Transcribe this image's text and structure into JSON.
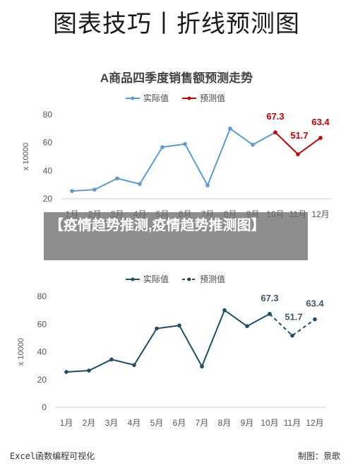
{
  "page": {
    "title": "图表技巧丨折线预测图"
  },
  "overlay": {
    "text": "【疫情趋势推测,疫情趋势推测图】"
  },
  "footer": {
    "left": "Excel函数编程可视化",
    "right": "制图：景歌"
  },
  "chart_data": [
    {
      "type": "line",
      "title": "A商品四季度销售额预测走势",
      "ylabel": "x 10000",
      "ylim": [
        20,
        80
      ],
      "yticks": [
        20,
        40,
        60,
        80
      ],
      "categories": [
        "1月",
        "2月",
        "3月",
        "4月",
        "5月",
        "6月",
        "7月",
        "8月",
        "9月",
        "10月",
        "11月",
        "12月"
      ],
      "series": [
        {
          "name": "实际值",
          "values": [
            25.5,
            26.5,
            34.5,
            30.5,
            56.8,
            59.0,
            29.5,
            70.0,
            58.5,
            67.3,
            null,
            null
          ],
          "color": "#5b9bd5",
          "dashed": false
        },
        {
          "name": "预测值",
          "values": [
            null,
            null,
            null,
            null,
            null,
            null,
            null,
            null,
            null,
            67.3,
            51.7,
            63.4
          ],
          "color": "#c00000",
          "dashed": false
        }
      ],
      "data_labels": [
        {
          "index": 9,
          "text": "67.3"
        },
        {
          "index": 10,
          "text": "51.7"
        },
        {
          "index": 11,
          "text": "63.4"
        }
      ],
      "label_color": "#c00000",
      "legend": "top-center",
      "grid": false
    },
    {
      "type": "line",
      "title": "",
      "ylabel": "x 10000",
      "ylim": [
        0,
        80
      ],
      "yticks": [
        0,
        20,
        40,
        60,
        80
      ],
      "categories": [
        "1月",
        "2月",
        "3月",
        "4月",
        "5月",
        "6月",
        "7月",
        "8月",
        "9月",
        "10月",
        "11月",
        "12月"
      ],
      "series": [
        {
          "name": "实际值",
          "values": [
            25.5,
            26.5,
            34.5,
            30.5,
            56.8,
            59.0,
            29.5,
            70.0,
            58.5,
            67.3,
            null,
            null
          ],
          "color": "#1f4e63",
          "dashed": false
        },
        {
          "name": "预测值",
          "values": [
            null,
            null,
            null,
            null,
            null,
            null,
            null,
            null,
            null,
            67.3,
            51.7,
            63.4
          ],
          "color": "#1f4e63",
          "dashed": true
        }
      ],
      "data_labels": [
        {
          "index": 9,
          "text": "67.3"
        },
        {
          "index": 10,
          "text": "51.7"
        },
        {
          "index": 11,
          "text": "63.4"
        }
      ],
      "label_color": "#44546a",
      "legend": "top-center",
      "grid": false
    }
  ]
}
